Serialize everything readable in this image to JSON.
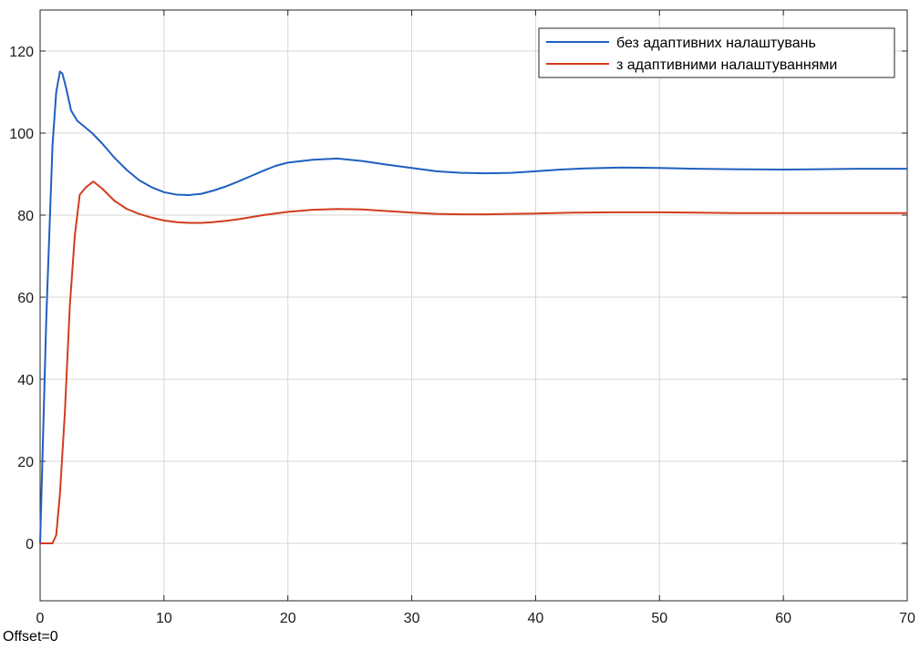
{
  "chart_data": {
    "type": "line",
    "title": "",
    "xlabel": "",
    "ylabel": "",
    "xlim": [
      0,
      70
    ],
    "ylim": [
      -14,
      130
    ],
    "xticks": [
      0,
      10,
      20,
      30,
      40,
      50,
      60,
      70
    ],
    "yticks": [
      0,
      20,
      40,
      60,
      80,
      100,
      120
    ],
    "grid": true,
    "legend_position": "top-right",
    "series": [
      {
        "name": "без адаптивних налаштувань",
        "color": "#1f5fbf",
        "x": [
          0,
          0.5,
          1.0,
          1.3,
          1.6,
          1.8,
          2.1,
          2.5,
          3.0,
          3.6,
          4.2,
          5.0,
          6.0,
          7.0,
          8.0,
          9.0,
          10.0,
          11.0,
          12.0,
          13.0,
          14.0,
          15.0,
          16.0,
          17.0,
          18.0,
          19.0,
          20.0,
          22.0,
          24.0,
          26.0,
          28.0,
          30.0,
          32.0,
          34.0,
          36.0,
          38.0,
          40.0,
          42.0,
          44.0,
          47.0,
          50.0,
          53.0,
          56.0,
          60.0,
          63.0,
          66.0,
          70.0
        ],
        "y": [
          0,
          55,
          97,
          110,
          115,
          114.5,
          111,
          105.5,
          103,
          101.5,
          100,
          97.5,
          94,
          91,
          88.5,
          86.8,
          85.6,
          85,
          84.9,
          85.2,
          86,
          87,
          88.2,
          89.5,
          90.8,
          92,
          92.8,
          93.5,
          93.8,
          93.2,
          92.3,
          91.5,
          90.7,
          90.3,
          90.2,
          90.3,
          90.7,
          91.1,
          91.4,
          91.6,
          91.5,
          91.3,
          91.2,
          91.1,
          91.2,
          91.3,
          91.3
        ]
      },
      {
        "name": "з адаптивними налаштуваннями",
        "color": "#d23c1e",
        "x": [
          0,
          0.6,
          1.0,
          1.3,
          1.6,
          2.0,
          2.4,
          2.8,
          3.2,
          3.7,
          4.3,
          5.0,
          6.0,
          7.0,
          8.0,
          9.0,
          10.0,
          11.0,
          12.0,
          13.0,
          14.0,
          15.0,
          16.0,
          17.0,
          18.0,
          20.0,
          22.0,
          24.0,
          26.0,
          28.0,
          30.0,
          32.0,
          34.0,
          36.0,
          38.0,
          40.0,
          43.0,
          46.0,
          50.0,
          53.0,
          56.0,
          60.0,
          65.0,
          70.0
        ],
        "y": [
          0,
          0,
          0,
          2,
          12,
          32,
          58,
          75,
          85,
          86.8,
          88.2,
          86.5,
          83.5,
          81.5,
          80.3,
          79.4,
          78.7,
          78.3,
          78.1,
          78.1,
          78.3,
          78.6,
          79,
          79.5,
          80,
          80.8,
          81.3,
          81.5,
          81.4,
          81,
          80.6,
          80.3,
          80.2,
          80.2,
          80.3,
          80.4,
          80.6,
          80.7,
          80.7,
          80.6,
          80.5,
          80.5,
          80.5,
          80.5
        ]
      }
    ]
  },
  "footer": {
    "offset_text": "Offset=0"
  }
}
